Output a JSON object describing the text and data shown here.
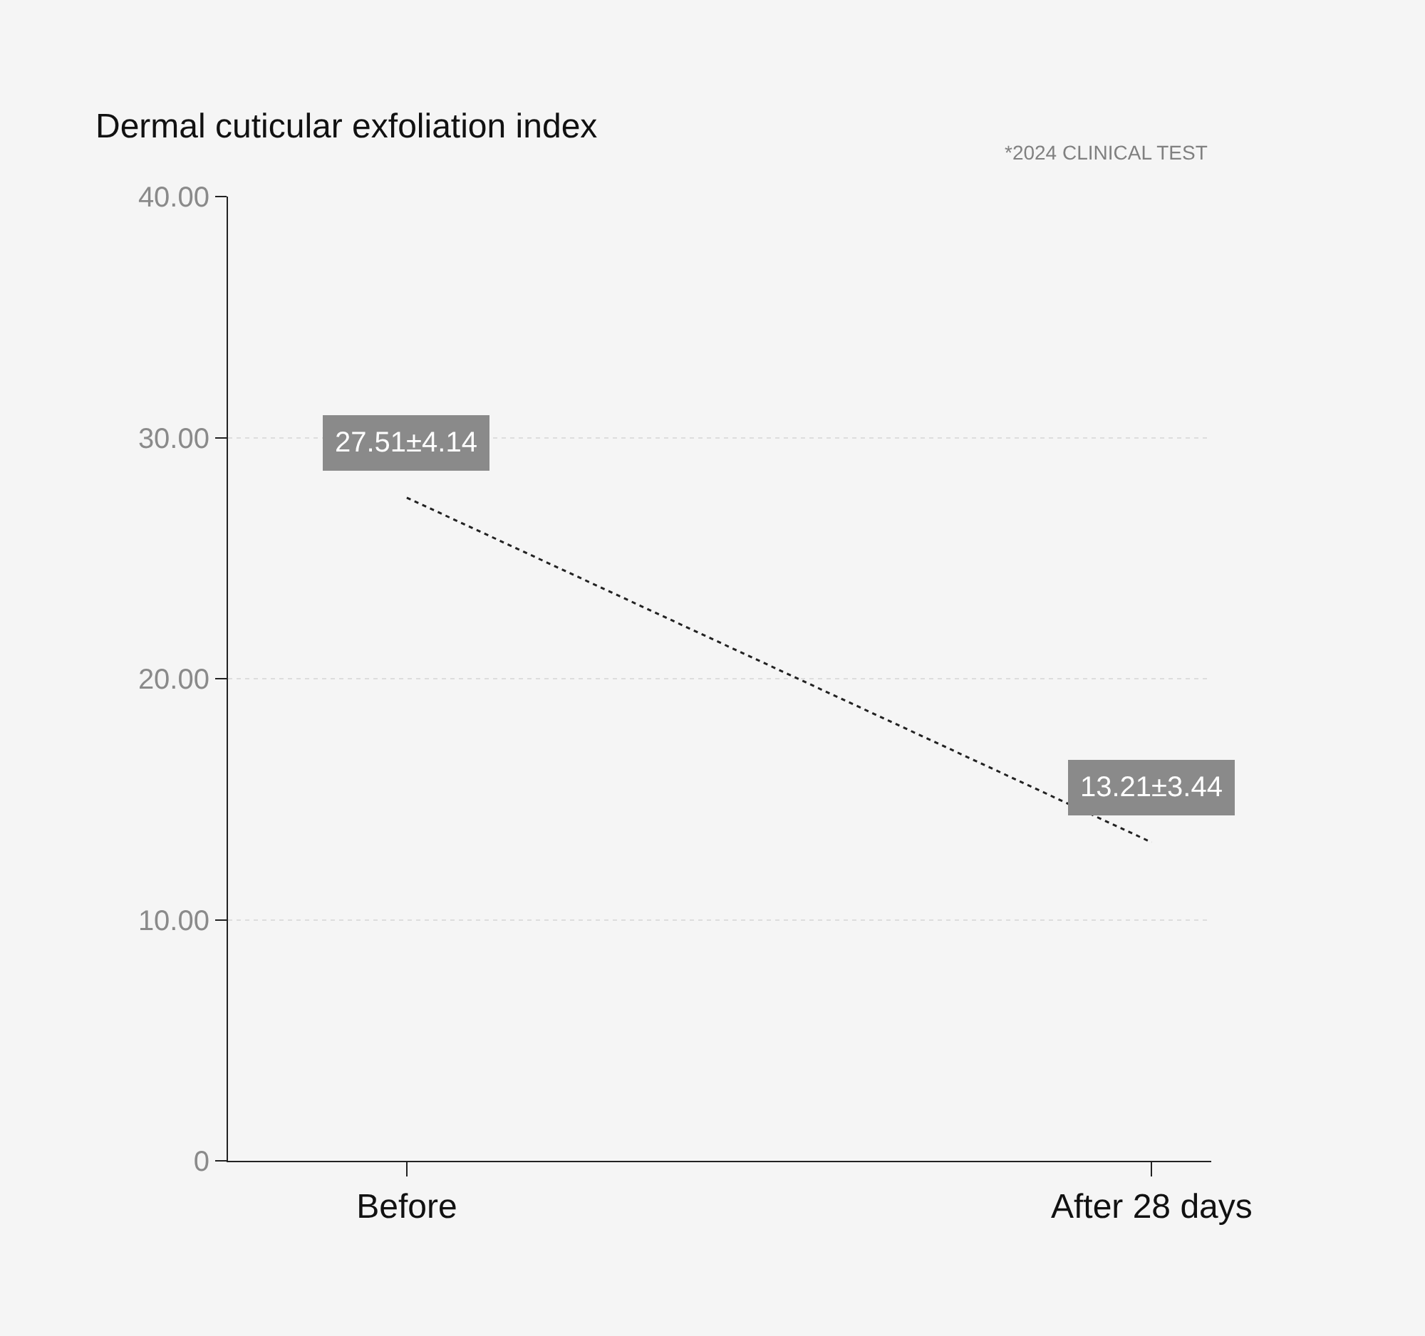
{
  "chart_data": {
    "type": "line",
    "title": "Dermal cuticular exfoliation index",
    "annotations": [
      "*2024 CLINICAL TEST"
    ],
    "categories": [
      "Before",
      "After 28 days"
    ],
    "series": [
      {
        "color": "#222222",
        "values": [
          27.51,
          13.21
        ],
        "value_labels": [
          "27.51±4.14",
          "13.21±3.44"
        ]
      }
    ],
    "ylim": [
      0,
      40
    ],
    "yticks": [
      0,
      {
        "value": 10,
        "label": "10.00"
      },
      {
        "value": 20,
        "label": "20.00"
      },
      {
        "value": 30,
        "label": "30.00"
      },
      {
        "value": 40,
        "label": "40.00"
      }
    ],
    "grid": "y",
    "line_style": "dotted"
  }
}
